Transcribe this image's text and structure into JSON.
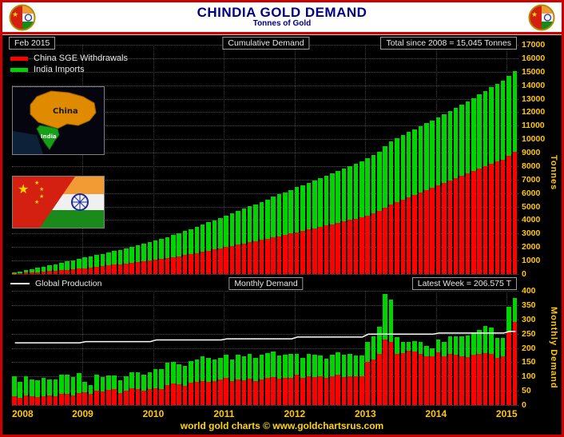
{
  "header": {
    "title": "CHINDIA GOLD DEMAND",
    "subtitle": "Tonnes of Gold"
  },
  "info_row": {
    "date_label": "Feb  2015",
    "center_label": "Cumulative Demand",
    "right_label": "Total since 2008 = 15,045 Tonnes"
  },
  "legend": {
    "items": [
      {
        "label": "China SGE Withdrawals",
        "color": "#ff0000"
      },
      {
        "label": "India Imports",
        "color": "#00d400"
      }
    ]
  },
  "row2": {
    "left_label": "Global Production",
    "center_label": "Monthly Demand",
    "right_label": "Latest Week = 206.575 T"
  },
  "axes": {
    "cumulative_ylabel": "Tonnes",
    "monthly_ylabel": "Monthly Demand",
    "years": [
      "2008",
      "2009",
      "2010",
      "2011",
      "2012",
      "2013",
      "2014",
      "2015"
    ]
  },
  "insets": {
    "map": {
      "china_label": "China",
      "india_label": "India"
    }
  },
  "footer": {
    "text": "world gold charts © www.goldchartsrus.com"
  },
  "colors": {
    "frame_border": "#cf0000",
    "title_navy": "#000087",
    "axis_gold": "#ffc800",
    "china_red": "#ff0000",
    "india_green": "#00d400",
    "production_line": "#ffffff",
    "background": "#000000"
  },
  "chart_data": [
    {
      "type": "bar",
      "stacked": true,
      "title": "Cumulative Demand",
      "ylabel": "Tonnes",
      "ylim": [
        0,
        17000
      ],
      "ytick_step": 1000,
      "grid": true,
      "total_since_2008": 15045,
      "months": {
        "start": "2008-01",
        "end": "2015-02",
        "count": 86
      },
      "note": "bars are running cumulative sums of the monthly_values below; red (China) stacked under green (India)",
      "series": [
        {
          "name": "China SGE Withdrawals",
          "color": "#ff0000",
          "cumulative_total": 9045,
          "monthly_values": [
            30,
            25,
            35,
            30,
            28,
            32,
            35,
            30,
            38,
            40,
            35,
            42,
            45,
            40,
            50,
            48,
            52,
            55,
            42,
            50,
            58,
            55,
            50,
            55,
            60,
            55,
            70,
            75,
            72,
            68,
            78,
            80,
            85,
            82,
            85,
            90,
            95,
            85,
            90,
            88,
            92,
            85,
            90,
            95,
            98,
            92,
            95,
            95,
            105,
            95,
            100,
            98,
            102,
            95,
            100,
            105,
            98,
            102,
            100,
            100,
            150,
            160,
            180,
            230,
            220,
            178,
            182,
            190,
            188,
            180,
            172,
            170,
            185,
            170,
            180,
            175,
            172,
            168,
            175,
            178,
            182,
            180,
            165,
            170,
            255,
            290
          ]
        },
        {
          "name": "India Imports",
          "color": "#00d400",
          "cumulative_total": 6000,
          "monthly_values": [
            70,
            55,
            65,
            60,
            58,
            62,
            55,
            60,
            68,
            65,
            62,
            70,
            35,
            30,
            55,
            50,
            52,
            48,
            45,
            50,
            58,
            60,
            57,
            60,
            65,
            70,
            78,
            75,
            72,
            68,
            75,
            80,
            85,
            82,
            75,
            75,
            80,
            75,
            85,
            82,
            88,
            80,
            85,
            88,
            90,
            82,
            80,
            85,
            75,
            70,
            80,
            78,
            72,
            68,
            75,
            80,
            78,
            76,
            74,
            74,
            70,
            80,
            95,
            160,
            150,
            60,
            40,
            30,
            35,
            40,
            35,
            30,
            45,
            50,
            60,
            65,
            70,
            75,
            80,
            85,
            95,
            90,
            70,
            65,
            90,
            85
          ]
        }
      ]
    },
    {
      "type": "bar+line",
      "stacked": true,
      "title": "Monthly Demand",
      "ylabel": "Monthly Demand",
      "ylim": [
        0,
        400
      ],
      "ytick_step": 50,
      "grid": true,
      "latest_week_label": "Latest Week = 206.575 T",
      "series_note": "same monthly series as the cumulative chart: China SGE Withdrawals (red) stacked under India Imports (green)",
      "line": {
        "name": "Global Production",
        "color": "#ffffff",
        "values_by_year": {
          "2008": 218,
          "2009": 222,
          "2010": 228,
          "2011": 232,
          "2012": 238,
          "2013": 248,
          "2014": 252,
          "2015": 258
        }
      }
    }
  ]
}
